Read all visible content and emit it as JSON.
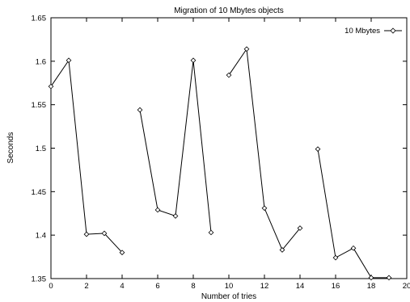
{
  "chart_data": {
    "type": "line",
    "title": "Migration of 10 Mbytes objects",
    "xlabel": "Number of tries",
    "ylabel": "Seconds",
    "xlim": [
      0,
      20
    ],
    "ylim": [
      1.35,
      1.65
    ],
    "xticks": [
      "0",
      "2",
      "4",
      "6",
      "8",
      "10",
      "12",
      "14",
      "16",
      "18",
      "20"
    ],
    "yticks": [
      "1.35",
      "1.4",
      "1.45",
      "1.5",
      "1.55",
      "1.6",
      "1.65"
    ],
    "grid": false,
    "legend_position": "top-right",
    "marker": "diamond",
    "series": [
      {
        "name": "10 Mbytes",
        "color": "#000000",
        "segments": [
          [
            [
              0,
              1.571
            ],
            [
              1,
              1.601
            ],
            [
              2,
              1.401
            ],
            [
              3,
              1.402
            ],
            [
              4,
              1.38
            ]
          ],
          [
            [
              5,
              1.544
            ],
            [
              6,
              1.429
            ],
            [
              7,
              1.422
            ],
            [
              8,
              1.601
            ],
            [
              9,
              1.403
            ]
          ],
          [
            [
              10,
              1.584
            ],
            [
              11,
              1.614
            ],
            [
              12,
              1.431
            ],
            [
              13,
              1.383
            ],
            [
              14,
              1.408
            ]
          ],
          [
            [
              15,
              1.499
            ],
            [
              16,
              1.374
            ],
            [
              17,
              1.385
            ],
            [
              18,
              1.351
            ],
            [
              19,
              1.351
            ]
          ]
        ]
      }
    ]
  }
}
